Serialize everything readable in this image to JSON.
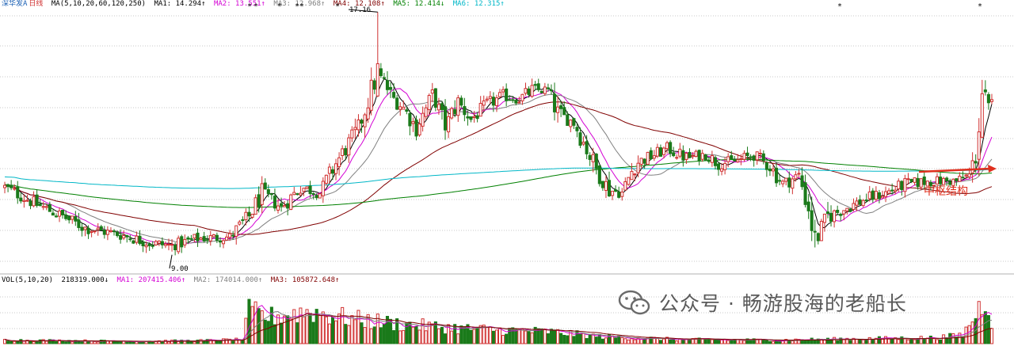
{
  "header": {
    "stock_name": "深华发A",
    "period": "日线",
    "ma_label": "MA(5,10,20,60,120,250)",
    "ma_values": [
      {
        "label": "MA1: 14.294↑",
        "color": "#000000"
      },
      {
        "label": "MA2: 13.551↑",
        "color": "#d400d4"
      },
      {
        "label": "MA3: 12.968↑",
        "color": "#808080"
      },
      {
        "label": "MA4: 12.108↑",
        "color": "#800000"
      },
      {
        "label": "MA5: 12.414↓",
        "color": "#008000"
      },
      {
        "label": "MA6: 12.315↑",
        "color": "#00b7c7"
      }
    ]
  },
  "volume_header": {
    "label": "VOL(5,10,20)",
    "value": "218319.000↓",
    "ma_values": [
      {
        "label": "MA1: 207415.406↑",
        "color": "#d400d4"
      },
      {
        "label": "MA2: 174014.000↑",
        "color": "#808080"
      },
      {
        "label": "MA3: 105872.648↑",
        "color": "#800000"
      }
    ]
  },
  "annotations": {
    "high_label": "17.16",
    "low_label": "9.00",
    "pivot_label": "中枢结构"
  },
  "watermark": {
    "text": "公众号 · 畅游股海的老船长"
  },
  "colors": {
    "up": "#d03030",
    "down": "#1a7a1a",
    "ma5": "#000000",
    "ma10": "#d400d4",
    "ma20": "#808080",
    "ma60": "#800000",
    "ma120": "#008000",
    "ma250": "#00b7c7",
    "arrow": "#e0301e",
    "grid": "#c8c8c8"
  },
  "chart_data": {
    "type": "candlestick",
    "price_range": [
      8.4,
      17.3
    ],
    "key_prices": {
      "high": 17.16,
      "low": 9.0
    },
    "anchors": [
      [
        0,
        11.2
      ],
      [
        10,
        10.6
      ],
      [
        18,
        10.2
      ],
      [
        25,
        9.8
      ],
      [
        35,
        9.6
      ],
      [
        45,
        9.3
      ],
      [
        52,
        9.2
      ],
      [
        60,
        9.45
      ],
      [
        70,
        9.5
      ],
      [
        76,
        10.2
      ],
      [
        80,
        11.0
      ],
      [
        86,
        10.5
      ],
      [
        92,
        11.2
      ],
      [
        98,
        11.0
      ],
      [
        103,
        12.0
      ],
      [
        110,
        13.2
      ],
      [
        114,
        14.5
      ],
      [
        116,
        15.0
      ],
      [
        118,
        14.8
      ],
      [
        120,
        14.3
      ],
      [
        124,
        13.9
      ],
      [
        128,
        13.2
      ],
      [
        133,
        14.3
      ],
      [
        137,
        13.3
      ],
      [
        141,
        14.1
      ],
      [
        145,
        13.5
      ],
      [
        150,
        14.0
      ],
      [
        155,
        14.3
      ],
      [
        160,
        14.2
      ],
      [
        164,
        14.5
      ],
      [
        169,
        14.5
      ],
      [
        172,
        13.7
      ],
      [
        177,
        13.4
      ],
      [
        181,
        12.5
      ],
      [
        184,
        11.8
      ],
      [
        188,
        11.1
      ],
      [
        192,
        11.0
      ],
      [
        196,
        12.0
      ],
      [
        200,
        12.2
      ],
      [
        206,
        12.5
      ],
      [
        212,
        12.2
      ],
      [
        218,
        12.3
      ],
      [
        222,
        12.0
      ],
      [
        228,
        12.1
      ],
      [
        233,
        12.3
      ],
      [
        238,
        11.9
      ],
      [
        242,
        11.3
      ],
      [
        247,
        11.6
      ],
      [
        250,
        10.5
      ],
      [
        252,
        9.3
      ],
      [
        256,
        10.2
      ],
      [
        262,
        10.5
      ],
      [
        268,
        10.8
      ],
      [
        274,
        11.0
      ],
      [
        280,
        11.3
      ],
      [
        288,
        11.4
      ],
      [
        296,
        11.4
      ],
      [
        300,
        11.6
      ],
      [
        302,
        12.3
      ],
      [
        304,
        14.4
      ],
      [
        306,
        13.8
      ],
      [
        307,
        14.0
      ]
    ],
    "volume_anchors": [
      [
        0,
        0.06
      ],
      [
        20,
        0.05
      ],
      [
        40,
        0.04
      ],
      [
        60,
        0.05
      ],
      [
        74,
        0.07
      ],
      [
        76,
        0.55
      ],
      [
        82,
        0.45
      ],
      [
        95,
        0.55
      ],
      [
        108,
        0.42
      ],
      [
        125,
        0.32
      ],
      [
        145,
        0.25
      ],
      [
        170,
        0.2
      ],
      [
        185,
        0.12
      ],
      [
        210,
        0.07
      ],
      [
        240,
        0.06
      ],
      [
        262,
        0.08
      ],
      [
        290,
        0.1
      ],
      [
        298,
        0.15
      ],
      [
        302,
        0.5
      ],
      [
        305,
        0.8
      ],
      [
        307,
        0.4
      ]
    ],
    "n_candles": 308
  }
}
